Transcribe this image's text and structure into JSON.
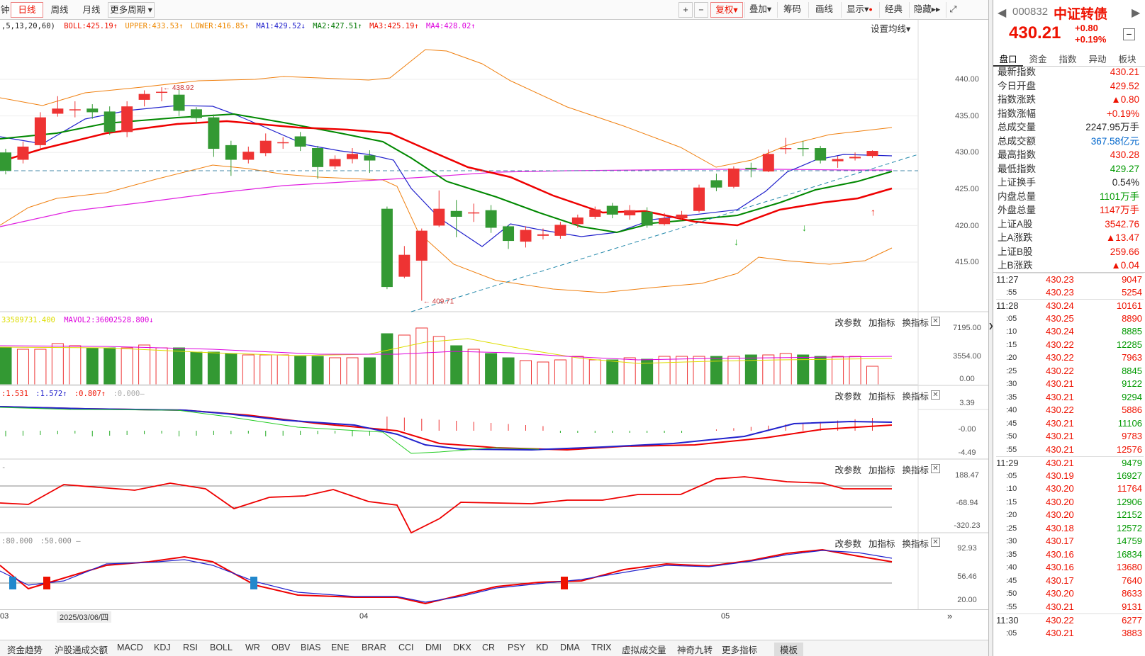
{
  "toolbar": {
    "tabs": [
      "钟",
      "日线",
      "周线",
      "月线",
      "更多周期"
    ],
    "active_tab": "日线",
    "right_buttons": [
      "复权",
      "叠加",
      "筹码",
      "画线",
      "显示",
      "经典",
      "隐藏"
    ],
    "fuquan_label": "复权"
  },
  "main_legend": {
    "params": ",5,13,20,60)",
    "boll": "BOLL:425.19",
    "upper": "UPPER:433.53",
    "lower": "LOWER:416.85",
    "ma1": "MA1:429.52",
    "ma2": "MA2:427.51",
    "ma3": "MA3:425.19",
    "ma4": "MA4:428.02",
    "settings": "设置均线"
  },
  "price_axis": [
    "440.00",
    "435.00",
    "430.00",
    "425.00",
    "420.00",
    "415.00"
  ],
  "annotations": {
    "high": "438.92",
    "low": "409.71"
  },
  "vol_legend": {
    "v1": "33589731.400",
    "v2": "MAVOL2:36002528.800"
  },
  "vol_axis": [
    "7195.00",
    "3554.00",
    "0.00"
  ],
  "ind2_legend": {
    "a": ":1.531",
    "b": ":1.572",
    "c": ":0.807",
    "d": ":0.000"
  },
  "ind2_axis": [
    "3.39",
    "-0.00",
    "-4.49"
  ],
  "ind3_axis": [
    "188.47",
    "-68.94",
    "-320.23"
  ],
  "ind4_legend": {
    "a": ":80.000",
    "b": ":50.000"
  },
  "ind4_axis": [
    "92.93",
    "56.46",
    "20.00"
  ],
  "panel_buttons": [
    "改参数",
    "加指标",
    "换指标"
  ],
  "date_axis": {
    "left": "03",
    "date": "2025/03/06/四",
    "m04": "04",
    "m05": "05"
  },
  "bottom_tabs": [
    "资金趋势",
    "沪股通成交额",
    "MACD",
    "KDJ",
    "RSI",
    "BOLL",
    "WR",
    "OBV",
    "BIAS",
    "ENE",
    "BRAR",
    "CCI",
    "DMI",
    "DKX",
    "CR",
    "PSY",
    "KD",
    "DMA",
    "TRIX",
    "虚拟成交量",
    "神奇九转",
    "更多指标",
    "模板"
  ],
  "active_bottom_tab": "模板",
  "quote": {
    "code": "000832",
    "name": "中证转债",
    "price": "430.21",
    "change": "+0.80",
    "change_pct": "+0.19%"
  },
  "right_tabs": [
    "盘口",
    "资金",
    "指数",
    "异动",
    "板块"
  ],
  "stats": [
    {
      "k": "最新指数",
      "v": "430.21",
      "c": "red"
    },
    {
      "k": "今日开盘",
      "v": "429.52",
      "c": "red"
    },
    {
      "k": "指数涨跌",
      "v": "▲0.80",
      "c": "red"
    },
    {
      "k": "指数涨幅",
      "v": "+0.19%",
      "c": "red"
    },
    {
      "k": "总成交量",
      "v": "2247.95万手",
      "c": ""
    },
    {
      "k": "总成交额",
      "v": "367.58亿元",
      "c": "blue"
    },
    {
      "k": "最高指数",
      "v": "430.28",
      "c": "red"
    },
    {
      "k": "最低指数",
      "v": "429.27",
      "c": "green"
    },
    {
      "k": "上证换手",
      "v": "0.54%",
      "c": ""
    },
    {
      "k": "内盘总量",
      "v": "1101万手",
      "c": "green"
    },
    {
      "k": "外盘总量",
      "v": "1147万手",
      "c": "red"
    },
    {
      "k": "上证A股",
      "v": "3542.76",
      "c": "red"
    },
    {
      "k": "上A涨跌",
      "v": "▲13.47",
      "c": "red"
    },
    {
      "k": "上证B股",
      "v": "259.66",
      "c": "red"
    },
    {
      "k": "上B涨跌",
      "v": "▲0.04",
      "c": "red"
    }
  ],
  "ticks": [
    {
      "t": "11:27",
      "p": "430.23",
      "v": "9047",
      "c": "red"
    },
    {
      "t": ":55",
      "p": "430.23",
      "v": "5254",
      "c": "red"
    },
    {
      "t": "11:28",
      "p": "430.24",
      "v": "10161",
      "c": "red"
    },
    {
      "t": ":05",
      "p": "430.25",
      "v": "8890",
      "c": "red"
    },
    {
      "t": ":10",
      "p": "430.24",
      "v": "8885",
      "c": "green"
    },
    {
      "t": ":15",
      "p": "430.22",
      "v": "12285",
      "c": "green"
    },
    {
      "t": ":20",
      "p": "430.22",
      "v": "7963",
      "c": "red"
    },
    {
      "t": ":25",
      "p": "430.22",
      "v": "8845",
      "c": "green"
    },
    {
      "t": ":30",
      "p": "430.21",
      "v": "9122",
      "c": "green"
    },
    {
      "t": ":35",
      "p": "430.21",
      "v": "9294",
      "c": "green"
    },
    {
      "t": ":40",
      "p": "430.22",
      "v": "5886",
      "c": "red"
    },
    {
      "t": ":45",
      "p": "430.21",
      "v": "11106",
      "c": "green"
    },
    {
      "t": ":50",
      "p": "430.21",
      "v": "9783",
      "c": "red"
    },
    {
      "t": ":55",
      "p": "430.21",
      "v": "12576",
      "c": "red"
    },
    {
      "t": "11:29",
      "p": "430.21",
      "v": "9479",
      "c": "green"
    },
    {
      "t": ":05",
      "p": "430.19",
      "v": "16927",
      "c": "green"
    },
    {
      "t": ":10",
      "p": "430.20",
      "v": "11764",
      "c": "red"
    },
    {
      "t": ":15",
      "p": "430.20",
      "v": "12906",
      "c": "green"
    },
    {
      "t": ":20",
      "p": "430.20",
      "v": "12152",
      "c": "green"
    },
    {
      "t": ":25",
      "p": "430.18",
      "v": "12572",
      "c": "green"
    },
    {
      "t": ":30",
      "p": "430.17",
      "v": "14759",
      "c": "green"
    },
    {
      "t": ":35",
      "p": "430.16",
      "v": "16834",
      "c": "green"
    },
    {
      "t": ":40",
      "p": "430.16",
      "v": "13680",
      "c": "red"
    },
    {
      "t": ":45",
      "p": "430.17",
      "v": "7640",
      "c": "red"
    },
    {
      "t": ":50",
      "p": "430.20",
      "v": "8633",
      "c": "red"
    },
    {
      "t": ":55",
      "p": "430.21",
      "v": "9131",
      "c": "red"
    },
    {
      "t": "11:30",
      "p": "430.22",
      "v": "6277",
      "c": "red"
    },
    {
      "t": ":05",
      "p": "430.21",
      "v": "3883",
      "c": "red"
    }
  ],
  "chart_data": {
    "type": "candlestick",
    "candles": [
      {
        "o": 430.0,
        "c": 427.5,
        "h": 430.5,
        "l": 427.0
      },
      {
        "o": 429.0,
        "c": 430.8,
        "h": 431.5,
        "l": 428.5
      },
      {
        "o": 431.0,
        "c": 434.8,
        "h": 435.5,
        "l": 430.5
      },
      {
        "o": 435.3,
        "c": 436.0,
        "h": 437.7,
        "l": 434.9
      },
      {
        "o": 435.9,
        "c": 435.9,
        "h": 437.0,
        "l": 434.8
      },
      {
        "o": 436.0,
        "c": 435.5,
        "h": 436.6,
        "l": 434.6
      },
      {
        "o": 435.6,
        "c": 432.8,
        "h": 436.3,
        "l": 432.4
      },
      {
        "o": 432.8,
        "c": 436.3,
        "h": 437.0,
        "l": 432.1
      },
      {
        "o": 437.2,
        "c": 438.0,
        "h": 438.5,
        "l": 436.3
      },
      {
        "o": 438.2,
        "c": 438.3,
        "h": 438.92,
        "l": 437.0
      },
      {
        "o": 437.9,
        "c": 435.7,
        "h": 438.6,
        "l": 435.0
      },
      {
        "o": 435.9,
        "c": 434.7,
        "h": 436.2,
        "l": 434.0
      },
      {
        "o": 434.8,
        "c": 430.5,
        "h": 435.2,
        "l": 429.4
      },
      {
        "o": 431.0,
        "c": 429.0,
        "h": 431.6,
        "l": 426.8
      },
      {
        "o": 429.0,
        "c": 430.1,
        "h": 430.8,
        "l": 428.5
      },
      {
        "o": 429.9,
        "c": 431.6,
        "h": 432.6,
        "l": 429.5
      },
      {
        "o": 431.3,
        "c": 431.4,
        "h": 432.1,
        "l": 430.5
      },
      {
        "o": 432.2,
        "c": 430.8,
        "h": 432.8,
        "l": 430.2
      },
      {
        "o": 430.6,
        "c": 428.0,
        "h": 430.9,
        "l": 426.4
      },
      {
        "o": 428.1,
        "c": 429.1,
        "h": 429.6,
        "l": 427.7
      },
      {
        "o": 429.1,
        "c": 429.8,
        "h": 430.6,
        "l": 428.5
      },
      {
        "o": 429.6,
        "c": 428.9,
        "h": 430.3,
        "l": 427.2
      },
      {
        "o": 422.3,
        "c": 411.6,
        "h": 422.6,
        "l": 411.3
      },
      {
        "o": 413.0,
        "c": 416.0,
        "h": 417.2,
        "l": 412.8
      },
      {
        "o": 415.2,
        "c": 419.3,
        "h": 419.6,
        "l": 409.71
      },
      {
        "o": 420.0,
        "c": 422.3,
        "h": 424.8,
        "l": 419.8
      },
      {
        "o": 422.0,
        "c": 421.2,
        "h": 423.5,
        "l": 418.4
      },
      {
        "o": 421.8,
        "c": 421.8,
        "h": 423.0,
        "l": 420.5
      },
      {
        "o": 422.1,
        "c": 419.7,
        "h": 422.8,
        "l": 419.0
      },
      {
        "o": 419.9,
        "c": 417.9,
        "h": 420.1,
        "l": 416.8
      },
      {
        "o": 417.8,
        "c": 419.4,
        "h": 419.9,
        "l": 417.0
      },
      {
        "o": 418.6,
        "c": 418.8,
        "h": 419.6,
        "l": 418.1
      },
      {
        "o": 418.6,
        "c": 420.1,
        "h": 420.5,
        "l": 418.2
      },
      {
        "o": 420.2,
        "c": 421.1,
        "h": 421.5,
        "l": 419.7
      },
      {
        "o": 421.2,
        "c": 422.2,
        "h": 422.6,
        "l": 420.9
      },
      {
        "o": 422.7,
        "c": 421.5,
        "h": 423.1,
        "l": 421.0
      },
      {
        "o": 421.4,
        "c": 422.1,
        "h": 422.8,
        "l": 420.8
      },
      {
        "o": 421.9,
        "c": 420.0,
        "h": 422.5,
        "l": 419.7
      },
      {
        "o": 420.2,
        "c": 421.0,
        "h": 421.7,
        "l": 420.0
      },
      {
        "o": 421.0,
        "c": 421.5,
        "h": 422.0,
        "l": 420.7
      },
      {
        "o": 422.0,
        "c": 425.2,
        "h": 425.6,
        "l": 421.8
      },
      {
        "o": 426.2,
        "c": 425.2,
        "h": 427.1,
        "l": 424.7
      },
      {
        "o": 425.3,
        "c": 427.8,
        "h": 428.1,
        "l": 425.1
      },
      {
        "o": 427.9,
        "c": 427.7,
        "h": 428.6,
        "l": 426.6
      },
      {
        "o": 427.4,
        "c": 429.8,
        "h": 430.4,
        "l": 427.3
      },
      {
        "o": 430.6,
        "c": 430.6,
        "h": 432.0,
        "l": 429.8
      },
      {
        "o": 430.6,
        "c": 430.5,
        "h": 431.6,
        "l": 429.5
      },
      {
        "o": 430.6,
        "c": 428.9,
        "h": 430.9,
        "l": 428.5
      },
      {
        "o": 428.8,
        "c": 429.1,
        "h": 429.5,
        "l": 427.9
      },
      {
        "o": 429.2,
        "c": 429.4,
        "h": 430.0,
        "l": 428.9
      },
      {
        "o": 429.52,
        "c": 430.21,
        "h": 430.28,
        "l": 429.27
      }
    ]
  }
}
